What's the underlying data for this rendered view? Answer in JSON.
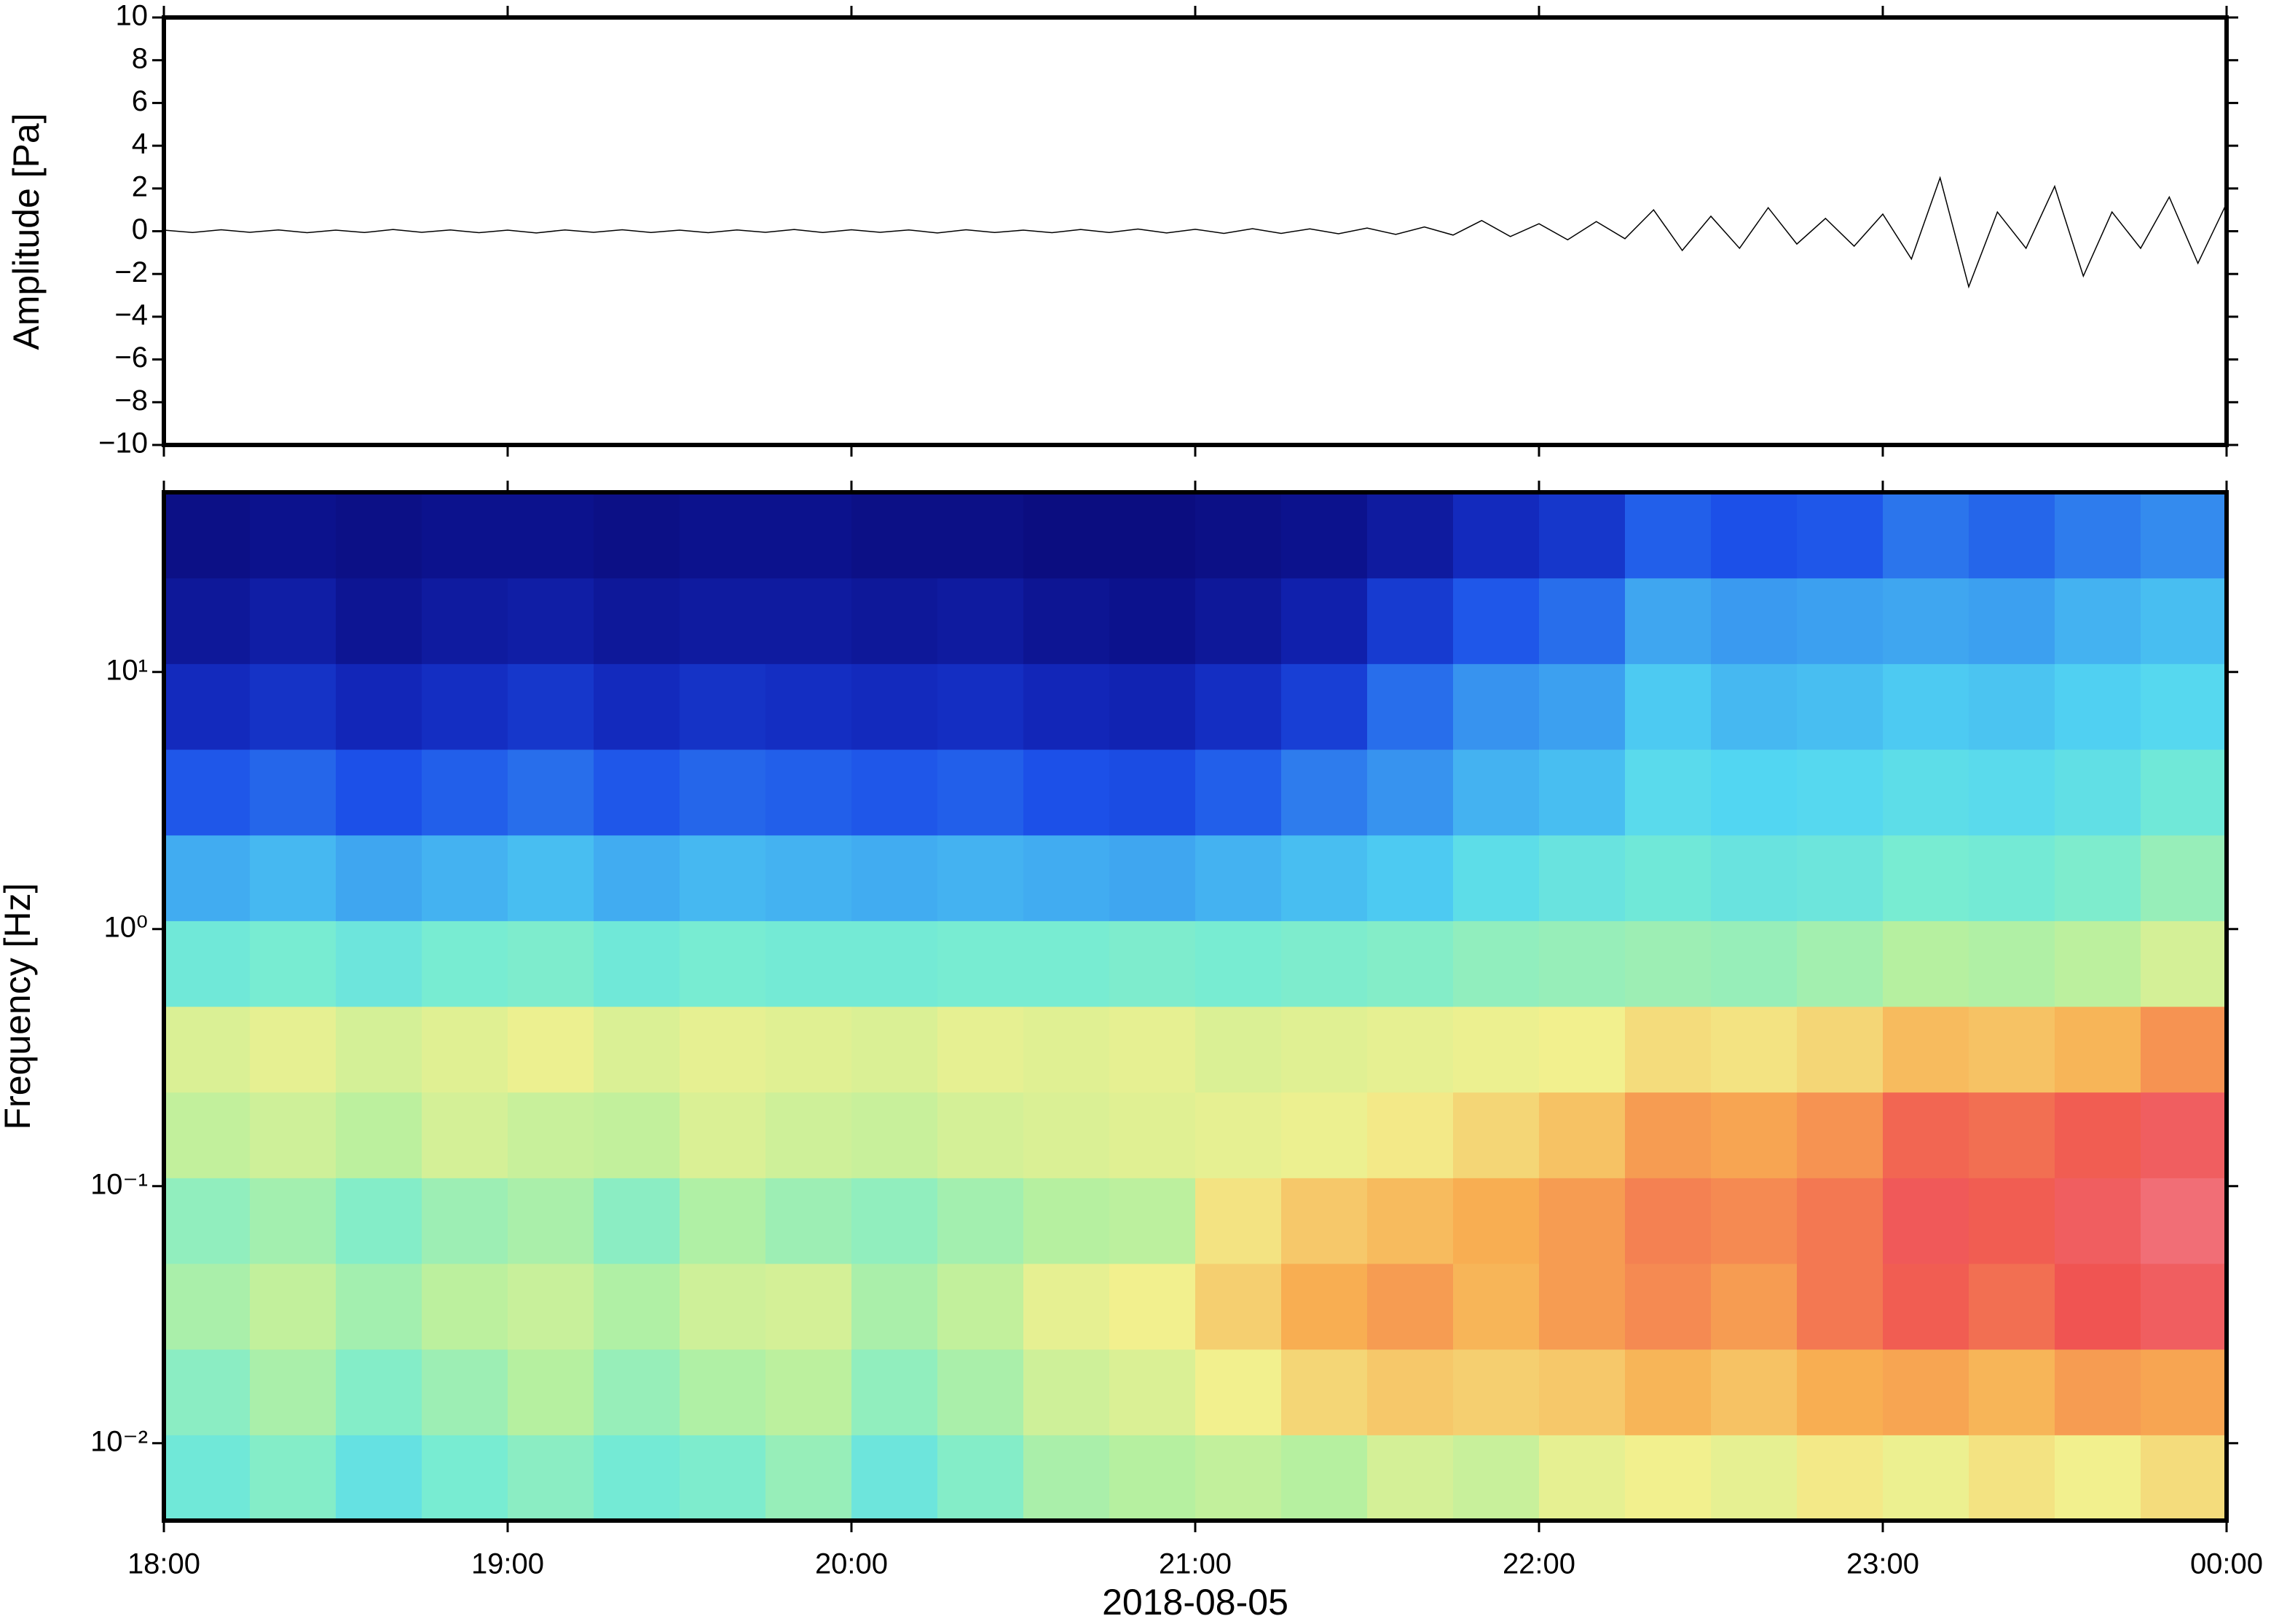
{
  "chart_data": [
    {
      "type": "line",
      "y_label": "Amplitude [Pa]",
      "x": [
        0,
        5,
        10,
        15,
        20,
        25,
        30,
        35,
        40,
        45,
        50,
        55,
        60,
        65,
        70,
        75,
        80,
        85,
        90,
        95,
        100,
        105,
        110,
        115,
        120,
        125,
        130,
        135,
        140,
        145,
        150,
        155,
        160,
        165,
        170,
        175,
        180,
        185,
        190,
        195,
        200,
        205,
        210,
        215,
        220,
        225,
        230,
        235,
        240,
        245,
        250,
        255,
        260,
        265,
        270,
        275,
        280,
        285,
        290,
        295,
        300,
        305,
        310,
        315,
        320,
        325,
        330,
        335,
        340,
        345,
        350,
        355,
        360
      ],
      "series": [
        {
          "color": "#000000",
          "values": [
            0.05,
            -0.06,
            0.07,
            -0.05,
            0.06,
            -0.07,
            0.05,
            -0.06,
            0.08,
            -0.05,
            0.06,
            -0.07,
            0.05,
            -0.08,
            0.06,
            -0.05,
            0.07,
            -0.06,
            0.05,
            -0.07,
            0.06,
            -0.05,
            0.08,
            -0.06,
            0.07,
            -0.05,
            0.06,
            -0.08,
            0.07,
            -0.06,
            0.05,
            -0.07,
            0.08,
            -0.06,
            0.1,
            -0.08,
            0.09,
            -0.1,
            0.12,
            -0.1,
            0.11,
            -0.12,
            0.15,
            -0.15,
            0.2,
            -0.18,
            0.5,
            -0.25,
            0.35,
            -0.4,
            0.45,
            -0.35,
            1.0,
            -0.9,
            0.7,
            -0.8,
            1.1,
            -0.6,
            0.6,
            -0.7,
            0.8,
            -1.3,
            2.5,
            -2.6,
            0.9,
            -0.8,
            2.1,
            -2.1,
            0.9,
            -0.8,
            1.6,
            -1.5,
            1.3
          ]
        }
      ],
      "xlim": [
        0,
        360
      ],
      "xticks": [
        0,
        60,
        120,
        180,
        240,
        300,
        360
      ],
      "ylim": [
        -10,
        10
      ],
      "yticks": [
        {
          "value": -10,
          "label": "−10"
        },
        {
          "value": -8,
          "label": "−8"
        },
        {
          "value": -6,
          "label": "−6"
        },
        {
          "value": -4,
          "label": "−4"
        },
        {
          "value": -2,
          "label": "−2"
        },
        0,
        2,
        4,
        6,
        8,
        10
      ]
    },
    {
      "type": "heatmap",
      "y_label": "Frequency [Hz]",
      "x_label": "2018-08-05",
      "log_y": true,
      "xlim": [
        0,
        360
      ],
      "xticks": [
        {
          "value": 0,
          "label": "18:00"
        },
        {
          "value": 60,
          "label": "19:00"
        },
        {
          "value": 120,
          "label": "20:00"
        },
        {
          "value": 180,
          "label": "21:00"
        },
        {
          "value": 240,
          "label": "22:00"
        },
        {
          "value": 300,
          "label": "23:00"
        },
        {
          "value": 360,
          "label": "00:00"
        }
      ],
      "ylim": [
        0.005,
        50
      ],
      "yticks": [
        {
          "value": 0.01,
          "label": "10⁻²"
        },
        {
          "value": 0.1,
          "label": "10⁻¹"
        },
        {
          "value": 1,
          "label": "10⁰"
        },
        {
          "value": 10,
          "label": "10¹"
        }
      ],
      "x_edges": [
        0,
        15,
        30,
        45,
        60,
        75,
        90,
        105,
        120,
        135,
        150,
        165,
        180,
        195,
        210,
        225,
        240,
        255,
        270,
        285,
        300,
        315,
        330,
        345,
        360
      ],
      "y_edges": [
        0.005,
        0.01077,
        0.0232,
        0.05,
        0.1077,
        0.232,
        0.5,
        1.077,
        2.32,
        5,
        10.77,
        23.2,
        50
      ],
      "zlim": [
        0,
        10
      ],
      "colormap": [
        "#0a0a7a",
        "#1226b8",
        "#1c50e8",
        "#3a9af0",
        "#52d6f2",
        "#78ecd2",
        "#b6f0a0",
        "#f2f08e",
        "#f8ae52",
        "#f05452",
        "#f2889a"
      ],
      "z": [
        [
          4.8,
          5.2,
          4.5,
          5,
          5.3,
          4.9,
          5.1,
          5.5,
          4.7,
          5.2,
          5.8,
          6,
          6.2,
          6,
          6.5,
          6.3,
          6.8,
          7,
          6.8,
          7.1,
          6.9,
          7.2,
          7,
          7.3
        ],
        [
          5.3,
          5.8,
          5.2,
          5.6,
          6,
          5.5,
          5.9,
          6.1,
          5.4,
          5.8,
          6.4,
          6.6,
          7,
          7.4,
          7.6,
          7.5,
          7.6,
          7.9,
          7.7,
          8,
          8.1,
          7.9,
          8.2,
          8.1
        ],
        [
          5.8,
          6.2,
          5.7,
          6.1,
          6.3,
          5.9,
          6.4,
          6.5,
          5.8,
          6.2,
          6.8,
          7,
          7.5,
          8,
          8.2,
          7.9,
          8.2,
          8.4,
          8.2,
          8.6,
          8.9,
          8.7,
          9,
          9.2
        ],
        [
          5.4,
          5.7,
          5.2,
          5.6,
          5.8,
          5.3,
          5.9,
          5.6,
          5.4,
          5.7,
          6,
          6.1,
          7.2,
          7.6,
          7.8,
          8,
          8.2,
          8.5,
          8.4,
          8.6,
          9.1,
          8.9,
          9.2,
          9.5
        ],
        [
          6.2,
          6.4,
          6.1,
          6.5,
          6.3,
          6.2,
          6.6,
          6.4,
          6.3,
          6.5,
          6.6,
          6.7,
          6.8,
          6.9,
          7.1,
          7.4,
          7.7,
          8.2,
          8.1,
          8.3,
          8.8,
          8.7,
          8.9,
          9.2
        ],
        [
          6.6,
          6.8,
          6.5,
          6.7,
          6.9,
          6.6,
          6.8,
          6.7,
          6.6,
          6.8,
          6.7,
          6.8,
          6.6,
          6.7,
          6.8,
          6.9,
          7,
          7.3,
          7.2,
          7.4,
          7.8,
          7.7,
          7.9,
          8.3
        ],
        [
          4.8,
          5,
          4.7,
          5,
          5.1,
          4.8,
          5,
          4.9,
          4.9,
          5,
          5,
          5.1,
          5,
          5.1,
          5.2,
          5.4,
          5.5,
          5.6,
          5.5,
          5.7,
          6,
          5.9,
          6.1,
          6.5
        ],
        [
          3.3,
          3.5,
          3.2,
          3.4,
          3.6,
          3.3,
          3.5,
          3.4,
          3.3,
          3.4,
          3.3,
          3.2,
          3.4,
          3.6,
          3.8,
          4.3,
          4.6,
          4.8,
          4.6,
          4.7,
          5,
          4.9,
          5.1,
          5.5
        ],
        [
          2.1,
          2.3,
          2,
          2.2,
          2.4,
          2.1,
          2.3,
          2.2,
          2.1,
          2.2,
          2,
          1.9,
          2.2,
          2.6,
          2.9,
          3.4,
          3.6,
          4.2,
          4,
          4.1,
          4.3,
          4.2,
          4.4,
          4.8
        ],
        [
          1.1,
          1.3,
          1,
          1.2,
          1.4,
          1.1,
          1.3,
          1.2,
          1.1,
          1.2,
          1,
          0.9,
          1.2,
          1.6,
          2.4,
          2.9,
          3.1,
          3.8,
          3.5,
          3.6,
          3.8,
          3.7,
          3.9,
          4.1
        ],
        [
          0.5,
          0.7,
          0.4,
          0.6,
          0.7,
          0.5,
          0.6,
          0.6,
          0.5,
          0.6,
          0.4,
          0.3,
          0.5,
          0.8,
          1.5,
          2.1,
          2.4,
          3.2,
          3,
          3.1,
          3.2,
          3.1,
          3.4,
          3.6
        ],
        [
          0.2,
          0.3,
          0.2,
          0.3,
          0.3,
          0.2,
          0.3,
          0.3,
          0.2,
          0.2,
          0.1,
          0.1,
          0.2,
          0.3,
          0.6,
          1.1,
          1.4,
          2.2,
          2,
          2.1,
          2.5,
          2.3,
          2.6,
          2.8
        ]
      ]
    }
  ]
}
